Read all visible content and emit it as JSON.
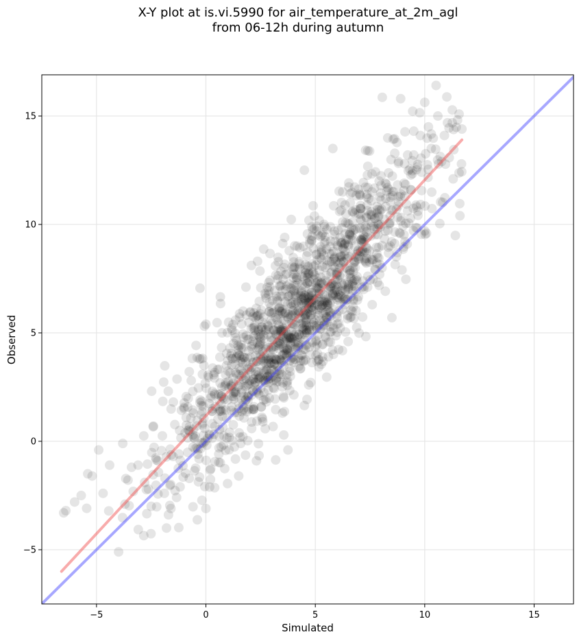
{
  "title_line1": "X-Y plot at is.vi.5990 for air_temperature_at_2m_agl",
  "title_line2": "from 06-12h during autumn",
  "chart_data": {
    "type": "scatter",
    "title": "X-Y plot at is.vi.5990 for air_temperature_at_2m_agl\nfrom 06-12h during autumn",
    "xlabel": "Simulated",
    "ylabel": "Observed",
    "xlim": [
      -7.5,
      16.8
    ],
    "ylim": [
      -7.5,
      16.9
    ],
    "xticks": [
      -5,
      0,
      5,
      10,
      15
    ],
    "xtick_labels": [
      "−5",
      "0",
      "5",
      "10",
      "15"
    ],
    "yticks": [
      -5,
      0,
      5,
      10,
      15
    ],
    "ytick_labels": [
      "−5",
      "0",
      "5",
      "10",
      "15"
    ],
    "grid": true,
    "point_color": "#000000",
    "point_alpha": 0.1,
    "lines": [
      {
        "color": "#ef4444",
        "alpha": 0.45,
        "x": [
          -6.6,
          11.7
        ],
        "y": [
          -6.0,
          13.9
        ]
      },
      {
        "color": "#3b3bff",
        "alpha": 0.45,
        "x": [
          -7.5,
          16.8
        ],
        "y": [
          -7.5,
          16.8
        ]
      }
    ],
    "sample_points": [
      [
        -6.5,
        -3.3
      ],
      [
        -6.4,
        -3.2
      ],
      [
        -6.0,
        -2.8
      ],
      [
        -5.7,
        -2.5
      ],
      [
        -5.4,
        -1.5
      ],
      [
        -5.2,
        -1.6
      ],
      [
        -4.9,
        -0.4
      ],
      [
        -4.7,
        -2.4
      ],
      [
        -4.4,
        -1.1
      ],
      [
        -3.8,
        -0.1
      ],
      [
        -3.7,
        -2.9
      ],
      [
        -3.4,
        -1.2
      ],
      [
        -3.1,
        -1.1
      ],
      [
        -2.8,
        -1.9
      ],
      [
        -2.5,
        -3.0
      ],
      [
        -2.2,
        -0.9
      ],
      [
        -1.9,
        -2.4
      ],
      [
        -1.8,
        -4.0
      ],
      [
        -1.5,
        -0.7
      ],
      [
        -1.2,
        0.5
      ],
      [
        -0.9,
        1.1
      ],
      [
        -0.6,
        2.3
      ],
      [
        -0.3,
        3.8
      ],
      [
        0.0,
        5.4
      ],
      [
        0.0,
        -3.1
      ],
      [
        0.3,
        1.5
      ],
      [
        0.6,
        -0.3
      ],
      [
        0.9,
        2.6
      ],
      [
        1.1,
        4.3
      ],
      [
        1.4,
        3.1
      ],
      [
        1.5,
        -1.6
      ],
      [
        1.7,
        6.0
      ],
      [
        2.0,
        2.8
      ],
      [
        2.4,
        4.9
      ],
      [
        2.6,
        0.9
      ],
      [
        2.8,
        7.1
      ],
      [
        3.0,
        3.9
      ],
      [
        3.3,
        5.4
      ],
      [
        3.5,
        1.3
      ],
      [
        3.6,
        9.4
      ],
      [
        3.9,
        6.2
      ],
      [
        4.2,
        4.4
      ],
      [
        4.4,
        5.2
      ],
      [
        4.5,
        12.5
      ],
      [
        4.7,
        2.6
      ],
      [
        4.9,
        7.8
      ],
      [
        5.2,
        5.9
      ],
      [
        5.4,
        10.0
      ],
      [
        5.6,
        3.9
      ],
      [
        5.8,
        13.5
      ],
      [
        6.0,
        6.9
      ],
      [
        6.3,
        8.3
      ],
      [
        6.5,
        4.6
      ],
      [
        6.6,
        11.0
      ],
      [
        6.9,
        7.4
      ],
      [
        7.2,
        9.5
      ],
      [
        7.4,
        13.4
      ],
      [
        7.6,
        6.3
      ],
      [
        7.9,
        10.4
      ],
      [
        8.2,
        11.9
      ],
      [
        8.5,
        5.7
      ],
      [
        8.8,
        12.9
      ],
      [
        8.9,
        15.8
      ],
      [
        9.2,
        9.1
      ],
      [
        9.5,
        13.2
      ],
      [
        9.8,
        14.1
      ],
      [
        10.0,
        9.7
      ],
      [
        10.3,
        13.5
      ],
      [
        10.6,
        15.0
      ],
      [
        10.9,
        14.1
      ],
      [
        11.3,
        12.1
      ],
      [
        11.7,
        14.4
      ]
    ]
  }
}
